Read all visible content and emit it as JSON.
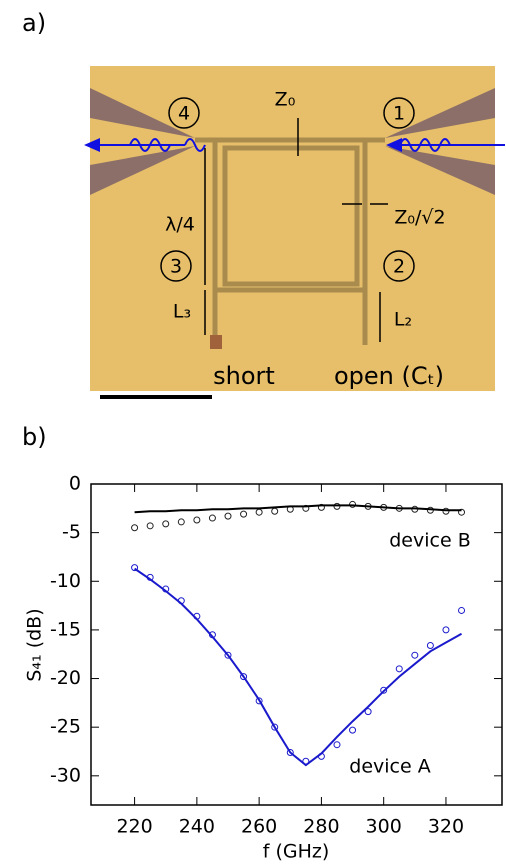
{
  "panel_a": {
    "label": "a)",
    "z0": "Z₀",
    "z0_root2": "Z₀/√2",
    "lambda": "λ/4",
    "l3": "L₃",
    "l2": "L₂",
    "short": "short",
    "open": "open (Cₜ)",
    "ports": [
      "1",
      "2",
      "3",
      "4"
    ]
  },
  "panel_b": {
    "label": "b)"
  },
  "chart_data": {
    "type": "scatter-line",
    "x_label": "f (GHz)",
    "y_label": "S₄₁  (dB)",
    "x": [
      220,
      225,
      230,
      235,
      240,
      245,
      250,
      255,
      260,
      265,
      270,
      275,
      280,
      285,
      290,
      295,
      300,
      305,
      310,
      315,
      320,
      325
    ],
    "series": [
      {
        "color": "#1a1acc",
        "style": "markers",
        "values": [
          -8.6,
          -9.6,
          -10.8,
          -12.0,
          -13.6,
          -15.5,
          -17.6,
          -19.8,
          -22.3,
          -25.0,
          -27.6,
          -28.5,
          -28.0,
          -26.8,
          -25.3,
          -23.4,
          -21.2,
          -19.0,
          -17.6,
          -16.6,
          -15.0,
          -13.0
        ]
      },
      {
        "color": "#1a1acc",
        "style": "line",
        "values": [
          -8.7,
          -9.8,
          -11.0,
          -12.3,
          -13.9,
          -15.7,
          -17.6,
          -19.8,
          -22.2,
          -25.0,
          -27.6,
          -28.9,
          -27.7,
          -26.0,
          -24.4,
          -22.9,
          -21.3,
          -19.8,
          -18.5,
          -17.2,
          -16.3,
          -15.4
        ]
      },
      {
        "color": "#222222",
        "style": "markers",
        "values": [
          -4.5,
          -4.3,
          -4.1,
          -3.9,
          -3.7,
          -3.5,
          -3.3,
          -3.1,
          -2.9,
          -2.8,
          -2.6,
          -2.5,
          -2.4,
          -2.3,
          -2.1,
          -2.3,
          -2.4,
          -2.5,
          -2.6,
          -2.7,
          -2.8,
          -2.9
        ]
      },
      {
        "color": "#000000",
        "style": "line",
        "values": [
          -2.9,
          -2.8,
          -2.8,
          -2.7,
          -2.7,
          -2.6,
          -2.6,
          -2.5,
          -2.5,
          -2.4,
          -2.3,
          -2.3,
          -2.2,
          -2.2,
          -2.2,
          -2.3,
          -2.4,
          -2.5,
          -2.5,
          -2.6,
          -2.7,
          -2.7
        ]
      }
    ],
    "annotations": [
      "device B",
      "device A"
    ],
    "xlim": [
      206,
      338
    ],
    "xticks": [
      220,
      240,
      260,
      280,
      300,
      320
    ],
    "ylim": [
      -33,
      0
    ],
    "yticks": [
      0,
      -5,
      -10,
      -15,
      -20,
      -25,
      -30
    ]
  }
}
